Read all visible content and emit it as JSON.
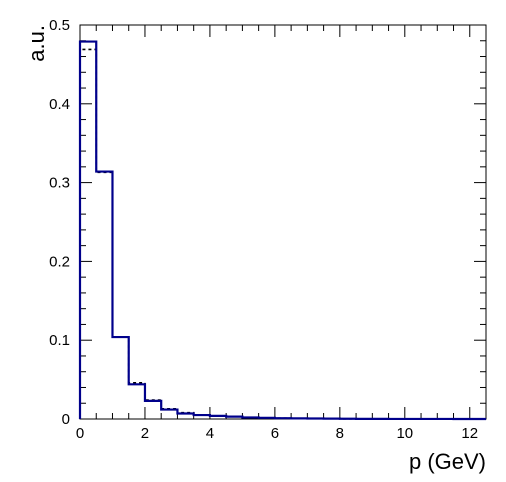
{
  "chart_data": {
    "type": "histogram",
    "title": "",
    "xlabel": "p (GeV)",
    "ylabel": "a.u.",
    "xlim": [
      0,
      12.5
    ],
    "ylim": [
      0,
      0.5
    ],
    "grid": false,
    "x_tick_labels": [
      "0",
      "2",
      "4",
      "6",
      "8",
      "10",
      "12"
    ],
    "x_tick_values": [
      0,
      2,
      4,
      6,
      8,
      10,
      12
    ],
    "y_tick_labels": [
      "0",
      "0.1",
      "0.2",
      "0.3",
      "0.4",
      "0.5"
    ],
    "y_tick_values": [
      0,
      0.1,
      0.2,
      0.3,
      0.4,
      0.5
    ],
    "bin_edges": [
      0,
      0.5,
      1.0,
      1.5,
      2.0,
      2.5,
      3.0,
      3.5,
      4.0,
      4.5,
      5.0,
      5.5,
      6.0,
      6.5,
      7.0,
      7.5,
      8.0,
      8.5,
      9.0,
      9.5,
      10.0,
      10.5,
      11.0,
      11.5,
      12.0,
      12.5
    ],
    "series": [
      {
        "style": "solid",
        "color": "#00008b",
        "values": [
          0.479,
          0.314,
          0.104,
          0.044,
          0.023,
          0.012,
          0.007,
          0.005,
          0.004,
          0.003,
          0.002,
          0.0015,
          0.001,
          0.0008,
          0.0006,
          0.0005,
          0.0003,
          0.0002,
          0.0002,
          0.0001,
          0.0001,
          0.0001,
          0.0001,
          0.0,
          0.0
        ]
      },
      {
        "style": "dashed",
        "color": "#000000",
        "values": [
          0.469,
          0.313,
          0.104,
          0.046,
          0.024,
          0.013,
          0.008,
          0.005,
          0.004,
          0.003,
          0.002,
          0.0015,
          0.001,
          0.0009,
          0.0007,
          0.0005,
          0.0003,
          0.0002,
          0.0002,
          0.0001,
          0.0001,
          0.0001,
          0.0001,
          0.0,
          0.0
        ]
      }
    ]
  }
}
